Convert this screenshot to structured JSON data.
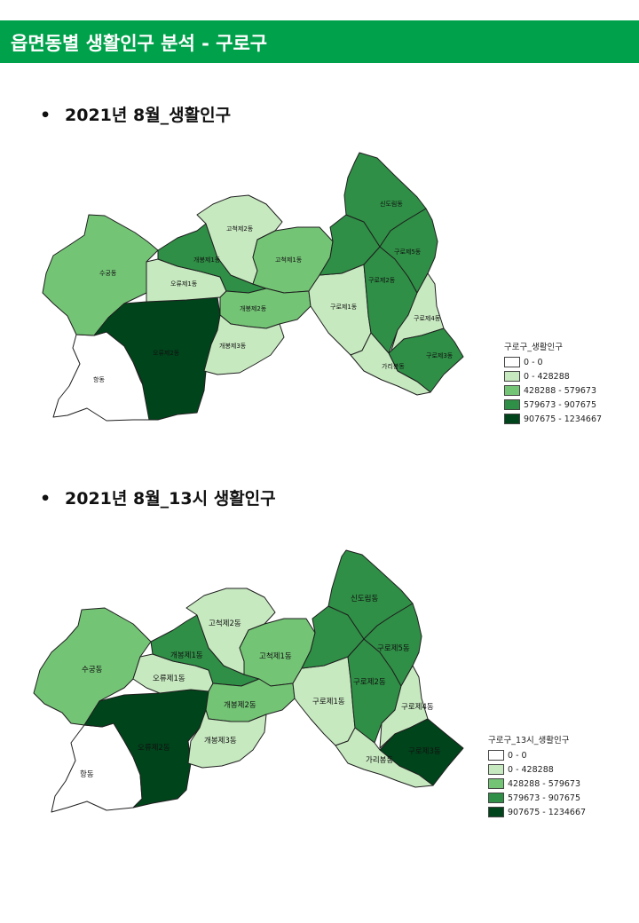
{
  "header": {
    "title": "읍면동별 생활인구 분석 - 구로구"
  },
  "sections": [
    {
      "title": "2021년 8월_생활인구"
    },
    {
      "title": "2021년 8월_13시 생활인구"
    }
  ],
  "map1": {
    "legend_title": "구로구_생활인구",
    "regions": {
      "hang": "항동",
      "sugung": "수궁동",
      "oryu1": "오류제1동",
      "oryu2": "오류제2동",
      "gaebong1": "개봉제1동",
      "gaebong2": "개봉제2동",
      "gaebong3": "개봉제3동",
      "gocheok1": "고척제1동",
      "gocheok2": "고척제2동",
      "guro1": "구로제1동",
      "guro2": "구로제2동",
      "guro3": "구로제3동",
      "guro4": "구로제4동",
      "guro5": "구로제5동",
      "garibong": "가리봉동",
      "sindorim": "신도림동"
    }
  },
  "map2": {
    "legend_title": "구로구_13시_생활인구",
    "regions": {
      "hang": "항동",
      "sugung": "수궁동",
      "oryu1": "오류제1동",
      "oryu2": "오류제2동",
      "gaebong1": "개봉제1동",
      "gaebong2": "개봉제2동",
      "gaebong3": "개봉제3동",
      "gocheok1": "고척제1동",
      "gocheok2": "고척제2동",
      "guro1": "구로제1동",
      "guro2": "구로제2동",
      "guro3": "구로제3동",
      "guro4": "구로제4동",
      "guro5": "구로제5동",
      "garibong": "가리봉동",
      "sindorim": "신도림동"
    }
  },
  "legend_classes": [
    {
      "label": "0 - 0",
      "color": "#ffffff"
    },
    {
      "label": "0 - 428288",
      "color": "#c7e9c0"
    },
    {
      "label": "428288 - 579673",
      "color": "#74c476"
    },
    {
      "label": "579673 - 907675",
      "color": "#2f8f46"
    },
    {
      "label": "907675 - 1234667",
      "color": "#00441b"
    }
  ]
}
